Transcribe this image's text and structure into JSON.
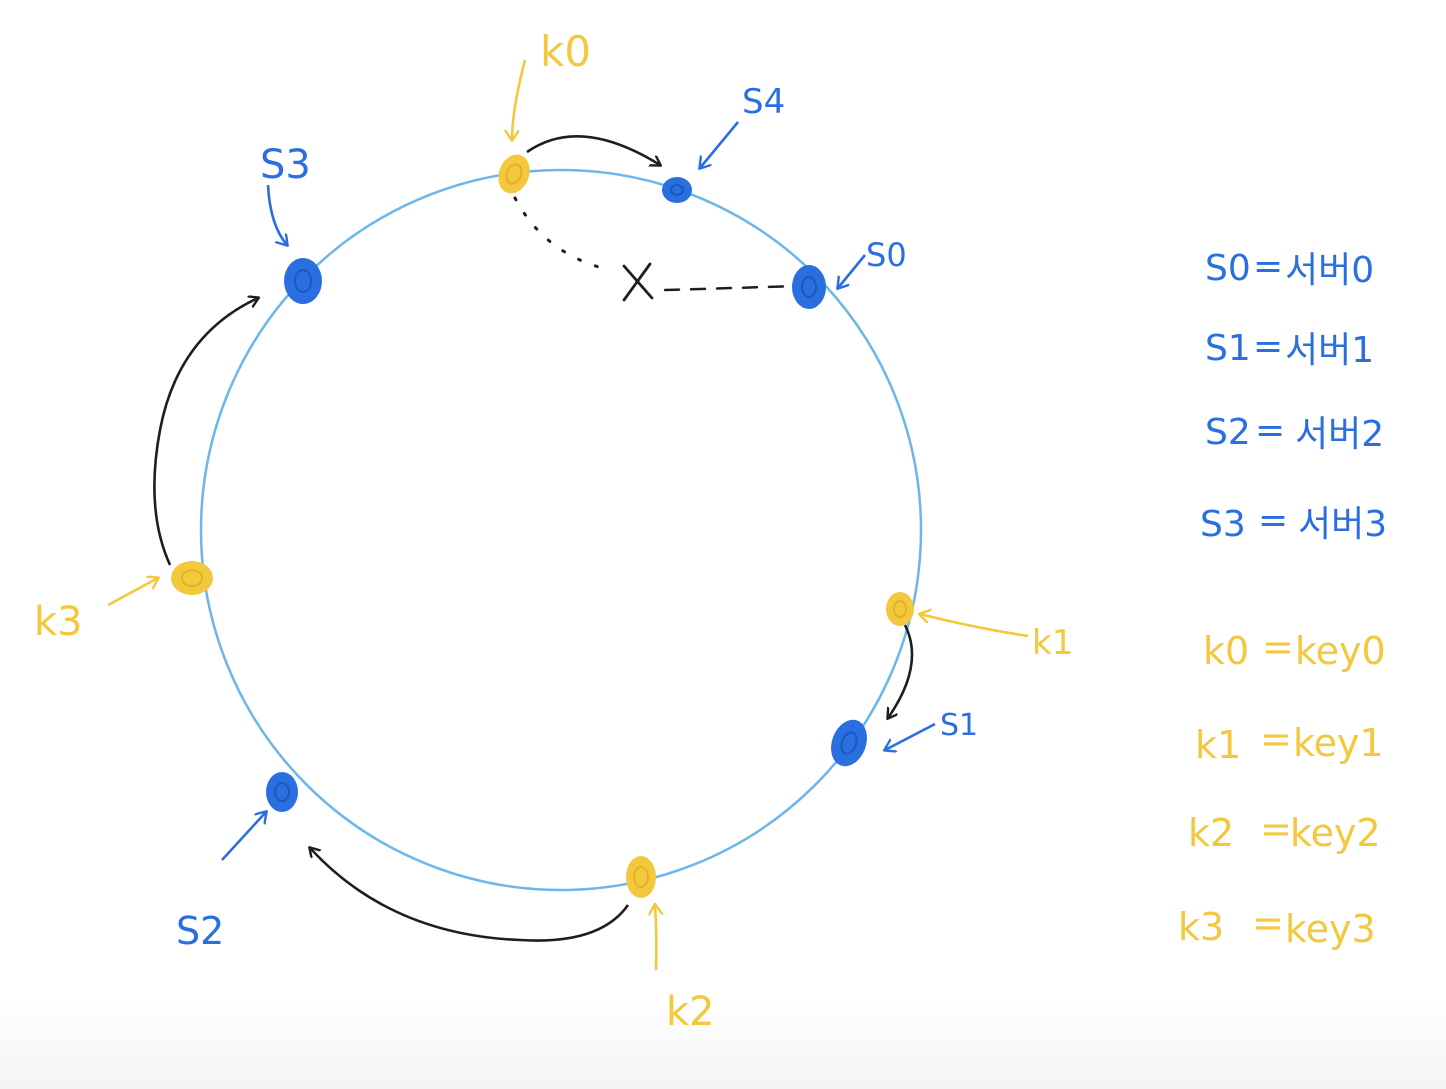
{
  "colors": {
    "ring": "#6cb6ec",
    "server": "#2a6fe0",
    "key": "#f3c83c",
    "arrow": "#1e1e1e"
  },
  "nodes": {
    "k0": "k0",
    "s4": "S4",
    "s3": "S3",
    "s0": "S0",
    "k3": "k3",
    "k1": "k1",
    "s1": "S1",
    "s2": "S2",
    "k2": "k2",
    "removed_mark": "X"
  },
  "legend": {
    "servers": [
      {
        "symbol": "S0",
        "sep": "=",
        "desc": "서버0"
      },
      {
        "symbol": "S1",
        "sep": "=",
        "desc": "서버1"
      },
      {
        "symbol": "S2",
        "sep": "=",
        "desc": "서버2"
      },
      {
        "symbol": "S3",
        "sep": "=",
        "desc": "서버3"
      }
    ],
    "keys": [
      {
        "symbol": "k0",
        "sep": "=",
        "desc": "key0"
      },
      {
        "symbol": "k1",
        "sep": "=",
        "desc": "key1"
      },
      {
        "symbol": "k2",
        "sep": "=",
        "desc": "key2"
      },
      {
        "symbol": "k3",
        "sep": "=",
        "desc": "key3"
      }
    ]
  }
}
